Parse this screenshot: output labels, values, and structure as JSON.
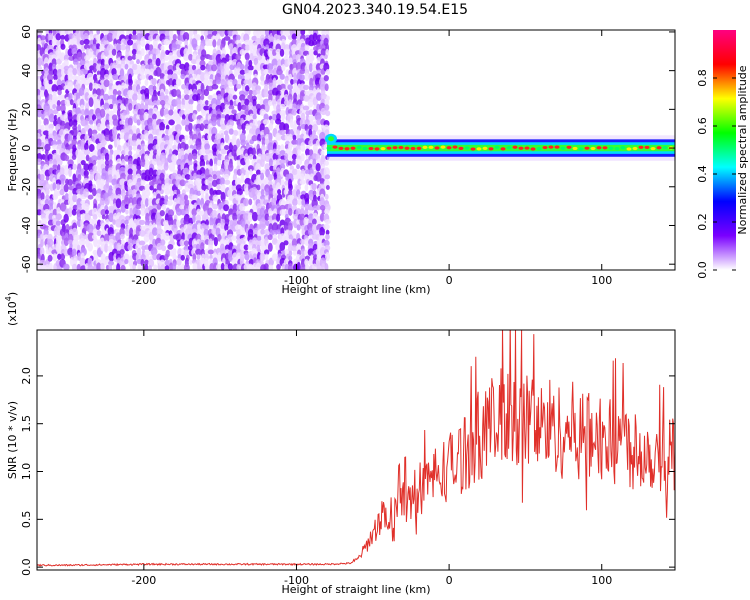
{
  "title": "GN04.2023.340.19.54.E15",
  "chart_data": [
    {
      "type": "heatmap",
      "xlabel": "Height of straight line (km)",
      "ylabel": "Frequency (Hz)",
      "xlim": [
        -270,
        148
      ],
      "ylim": [
        -63,
        61
      ],
      "x_ticks": [
        -200,
        -100,
        0,
        100
      ],
      "y_ticks": [
        -60,
        -40,
        -20,
        0,
        20,
        40,
        60
      ],
      "noise_region_x": [
        -270,
        -80
      ],
      "signal_band": {
        "x_start": -80,
        "x_end": 148,
        "center_hz": 0,
        "halfwidth_hz": 3
      },
      "colorbar": {
        "label": "Normalized spectral amplitude",
        "range": [
          0,
          1
        ],
        "ticks": [
          0.0,
          0.2,
          0.4,
          0.6,
          0.8
        ],
        "colormap": [
          "#ffffff",
          "#7a00ff",
          "#0000ff",
          "#00ffff",
          "#00ff00",
          "#ffff00",
          "#ff0000",
          "#ff0080"
        ]
      }
    },
    {
      "type": "line",
      "xlabel": "Height of straight line (km)",
      "ylabel": "SNR (10 * v/v)",
      "scale_label": "(x10",
      "scale_exp": "4",
      "scale_close": ")",
      "xlim": [
        -270,
        148
      ],
      "ylim": [
        -0.03,
        2.48
      ],
      "x_ticks": [
        -200,
        -100,
        0,
        100
      ],
      "y_ticks": [
        0.0,
        0.5,
        1.0,
        1.5,
        2.0
      ],
      "color": "#e0302a",
      "series": [
        {
          "x": [
            -270,
            -250,
            -200,
            -150,
            -100,
            -80,
            -65,
            -60,
            -55,
            -50,
            -45,
            -40,
            -35,
            -30,
            -25,
            -20,
            -15,
            -10,
            -5,
            0,
            5,
            10,
            15,
            20,
            25,
            30,
            35,
            40,
            45,
            50,
            55,
            60,
            65,
            70,
            75,
            80,
            85,
            90,
            95,
            100,
            105,
            110,
            115,
            120,
            125,
            130,
            135,
            140,
            145,
            148
          ],
          "y": [
            0.02,
            0.02,
            0.03,
            0.03,
            0.03,
            0.03,
            0.04,
            0.08,
            0.2,
            0.35,
            0.5,
            0.6,
            0.62,
            0.7,
            0.72,
            0.8,
            0.9,
            0.95,
            1.0,
            1.05,
            1.1,
            1.2,
            1.3,
            1.4,
            1.45,
            1.5,
            1.55,
            1.6,
            1.5,
            1.55,
            1.5,
            1.45,
            1.5,
            1.45,
            1.4,
            1.45,
            1.4,
            1.35,
            1.4,
            1.35,
            1.3,
            1.35,
            1.3,
            1.25,
            1.25,
            1.2,
            1.2,
            1.15,
            1.2,
            1.2
          ]
        }
      ]
    }
  ]
}
